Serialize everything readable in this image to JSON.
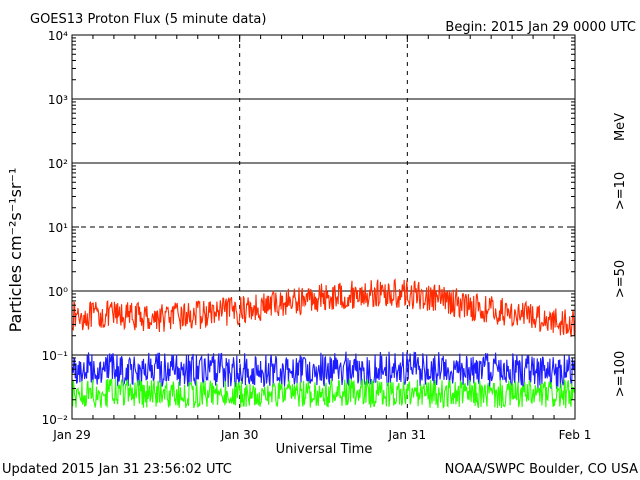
{
  "header": {
    "title": "GOES13 Proton Flux (5 minute data)",
    "begin": "Begin: 2015 Jan 29 0000 UTC"
  },
  "footer": {
    "updated": "Updated 2015 Jan 31 23:56:02 UTC",
    "credit": "NOAA/SWPC Boulder, CO USA"
  },
  "colors": {
    "ge10": "#ff2a00",
    "ge50": "#1c1cff",
    "ge100": "#2aff00"
  },
  "chart_data": {
    "type": "line",
    "title": "GOES13 Proton Flux (5 minute data)",
    "xlabel": "Universal Time",
    "ylabel": "Particles cm⁻²s⁻¹sr⁻¹",
    "unit_label": "MeV",
    "yscale": "log",
    "ylim": [
      0.01,
      10000
    ],
    "ytick_labels": [
      "10⁻²",
      "10⁻¹",
      "10⁰",
      "10¹",
      "10²",
      "10³",
      "10⁴"
    ],
    "xtick_labels": [
      "Jan 29",
      "Jan 30",
      "Jan 31",
      "Feb 1"
    ],
    "xlim_days": [
      0,
      3
    ],
    "grid": "solid at 10^-1, 10^0, 10^2, 10^3; dashed at 10^1; dashed vertical at day boundaries",
    "series": [
      {
        "name": ">=10",
        "color": "#ff2a00",
        "x": [
          "2015-01-29 00:00",
          "2015-01-29 06:00",
          "2015-01-29 12:00",
          "2015-01-29 18:00",
          "2015-01-30 00:00",
          "2015-01-30 06:00",
          "2015-01-30 12:00",
          "2015-01-30 18:00",
          "2015-01-31 00:00",
          "2015-01-31 06:00",
          "2015-01-31 12:00",
          "2015-01-31 18:00",
          "2015-02-01 00:00"
        ],
        "values": [
          0.4,
          0.42,
          0.38,
          0.42,
          0.5,
          0.65,
          0.8,
          0.9,
          0.9,
          0.7,
          0.5,
          0.4,
          0.3
        ]
      },
      {
        "name": ">=50",
        "color": "#1c1cff",
        "x": [
          "2015-01-29 00:00",
          "2015-01-29 12:00",
          "2015-01-30 00:00",
          "2015-01-30 12:00",
          "2015-01-31 00:00",
          "2015-01-31 12:00",
          "2015-02-01 00:00"
        ],
        "values": [
          0.06,
          0.058,
          0.058,
          0.06,
          0.06,
          0.058,
          0.055
        ]
      },
      {
        "name": ">=100",
        "color": "#2aff00",
        "x": [
          "2015-01-29 00:00",
          "2015-01-29 12:00",
          "2015-01-30 00:00",
          "2015-01-30 12:00",
          "2015-01-31 00:00",
          "2015-01-31 12:00",
          "2015-02-01 00:00"
        ],
        "values": [
          0.025,
          0.025,
          0.024,
          0.025,
          0.025,
          0.024,
          0.024
        ]
      }
    ]
  }
}
